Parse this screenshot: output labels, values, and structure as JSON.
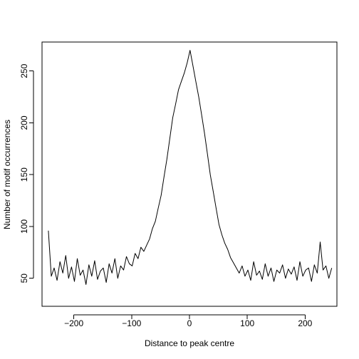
{
  "chart_data": {
    "type": "line",
    "title": "",
    "xlabel": "Distance to peak centre",
    "ylabel": "Number of motif occurrences",
    "xlim": [
      -255,
      255
    ],
    "ylim": [
      23,
      278
    ],
    "x_ticks": [
      -200,
      -100,
      0,
      100,
      200
    ],
    "x_tick_labels": [
      "−200",
      "−100",
      "0",
      "100",
      "200"
    ],
    "y_ticks": [
      50,
      100,
      150,
      200,
      250
    ],
    "y_tick_labels": [
      "50",
      "100",
      "150",
      "200",
      "250"
    ],
    "grid": false,
    "legend": "none",
    "color": "#000000",
    "series": [
      {
        "x": [
          -244,
          -239,
          -234,
          -229,
          -224,
          -219,
          -214,
          -209,
          -204,
          -199,
          -194,
          -189,
          -184,
          -179,
          -174,
          -169,
          -164,
          -159,
          -154,
          -149,
          -144,
          -139,
          -134,
          -129,
          -124,
          -119,
          -114,
          -109,
          -104,
          -99,
          -94,
          -89,
          -84,
          -79,
          -74,
          -69,
          -64,
          -59,
          -54,
          -49,
          -44,
          -39,
          -34,
          -29,
          -24,
          -19,
          -14,
          -9,
          -4,
          1,
          6,
          11,
          16,
          21,
          26,
          31,
          36,
          41,
          46,
          51,
          56,
          61,
          66,
          71,
          76,
          81,
          86,
          91,
          96,
          101,
          106,
          111,
          116,
          121,
          126,
          131,
          136,
          141,
          146,
          151,
          156,
          161,
          166,
          171,
          176,
          181,
          186,
          191,
          196,
          201,
          206,
          211,
          216,
          221,
          226,
          231,
          236,
          241,
          246
        ],
        "values": [
          96,
          52,
          60,
          48,
          66,
          55,
          72,
          50,
          61,
          47,
          69,
          53,
          58,
          44,
          63,
          52,
          67,
          49,
          57,
          60,
          46,
          64,
          55,
          69,
          50,
          62,
          58,
          71,
          64,
          62,
          74,
          69,
          80,
          76,
          82,
          88,
          98,
          105,
          118,
          130,
          148,
          165,
          185,
          205,
          218,
          232,
          240,
          248,
          258,
          270,
          255,
          240,
          225,
          208,
          190,
          170,
          150,
          134,
          118,
          102,
          92,
          84,
          78,
          70,
          65,
          60,
          55,
          62,
          52,
          58,
          48,
          66,
          53,
          57,
          49,
          64,
          52,
          60,
          47,
          58,
          55,
          63,
          50,
          59,
          54,
          61,
          48,
          66,
          52,
          58,
          60,
          47,
          63,
          55,
          85,
          58,
          62,
          50,
          60
        ]
      }
    ]
  }
}
